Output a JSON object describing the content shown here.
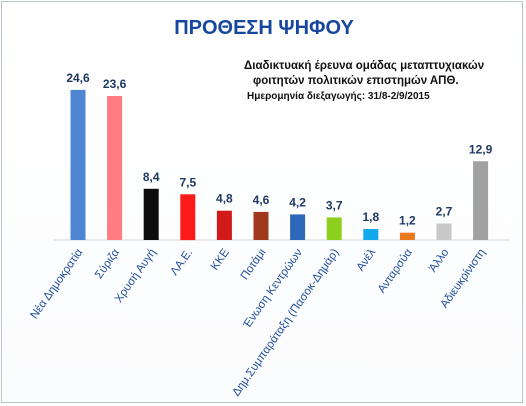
{
  "chart_data": {
    "type": "bar",
    "title": "ΠΡΟΘΕΣΗ ΨΗΦΟΥ",
    "annotation_lines": [
      "Διαδικτυακή έρευνα ομάδας μεταπτυχιακών",
      "φοιτητών πολιτικών επιστημών ΑΠΘ."
    ],
    "annotation_date": "Ημερομηνία διεξαγωγής: 31/8-2/9/2015",
    "categories": [
      "Νέα Δημοκρατία",
      "Σύριζα",
      "Χρυσή Αυγή",
      "ΛΑ.Ε.",
      "ΚΚΕ",
      "Ποτάμι",
      "Ένωση Κεντρώων",
      "Δημ.Συμπαράταξη (Πασοκ-Δημάρ)",
      "Ανέλ",
      "Ανταρσύα",
      "Άλλο",
      "Αδιευκρίνιστη"
    ],
    "values": [
      24.6,
      23.6,
      8.4,
      7.5,
      4.8,
      4.6,
      4.2,
      3.7,
      1.8,
      1.2,
      2.7,
      12.9
    ],
    "value_labels": [
      "24,6",
      "23,6",
      "8,4",
      "7,5",
      "4,8",
      "4,6",
      "4,2",
      "3,7",
      "1,8",
      "1,2",
      "2,7",
      "12,9"
    ],
    "colors": [
      "#4f86d4",
      "#ff7c80",
      "#0d0d0d",
      "#ff1a1a",
      "#d11a1a",
      "#a0391c",
      "#2e66b8",
      "#8ccf1c",
      "#13a9ee",
      "#e9791d",
      "#c8c8c8",
      "#a1a1a1"
    ],
    "ylim": [
      0,
      25
    ],
    "grid": false,
    "legend": "none",
    "xlabel": "",
    "ylabel": ""
  }
}
